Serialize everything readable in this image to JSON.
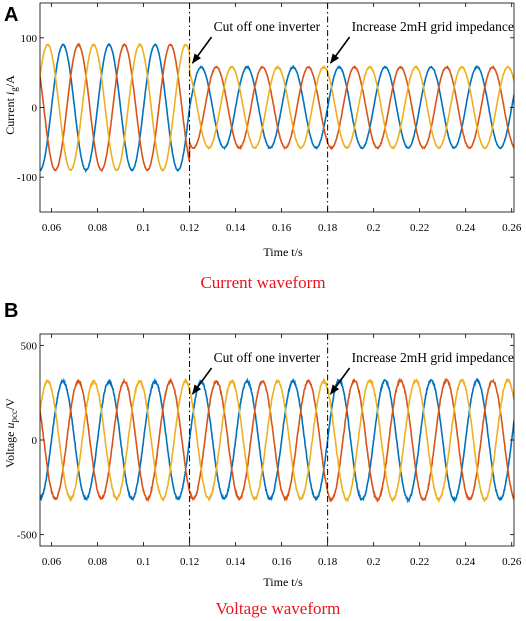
{
  "colors": {
    "phase_a": "#0072bd",
    "phase_b": "#d95319",
    "phase_c": "#edb120",
    "caption": "#e8141e",
    "frame": "#000000"
  },
  "chart_data": [
    {
      "type": "line",
      "panel_label": "A",
      "title": "Current waveform",
      "xlabel": "Time t/s",
      "ylabel_parts": {
        "prefix": "Current ",
        "var": "i",
        "sub": "g",
        "suffix": "/A"
      },
      "xlim": [
        0.055,
        0.261
      ],
      "ylim": [
        -150,
        150
      ],
      "xticks": [
        0.06,
        0.08,
        0.1,
        0.12,
        0.14,
        0.16,
        0.18,
        0.2,
        0.22,
        0.24,
        0.26
      ],
      "xtick_labels": [
        "0.06",
        "0.08",
        "0.1",
        "0.12",
        "0.14",
        "0.16",
        "0.18",
        "0.2",
        "0.22",
        "0.24",
        "0.26"
      ],
      "yticks": [
        -100,
        0,
        100
      ],
      "ytick_labels": [
        "-100",
        "0",
        "100"
      ],
      "frequency_hz": 50,
      "series": [
        {
          "phase_deg": 0,
          "color": "#0072bd"
        },
        {
          "phase_deg": -120,
          "color": "#d95319"
        },
        {
          "phase_deg": 120,
          "color": "#edb120"
        }
      ],
      "segments": [
        {
          "t_start": 0.055,
          "t_end": 0.12,
          "amplitude": 90
        },
        {
          "t_start": 0.12,
          "t_end": 0.18,
          "amplitude": 58
        },
        {
          "t_start": 0.18,
          "t_end": 0.261,
          "amplitude": 58
        }
      ],
      "noise": 1.5,
      "events": [
        {
          "t": 0.12,
          "label": "Cut off one inverter"
        },
        {
          "t": 0.18,
          "label": "Increase 2mH grid impedance"
        }
      ]
    },
    {
      "type": "line",
      "panel_label": "B",
      "title": "Voltage waveform",
      "xlabel": "Time t/s",
      "ylabel_parts": {
        "prefix": "Voltage ",
        "var": "u",
        "sub": "pcc",
        "suffix": "/V"
      },
      "xlim": [
        0.055,
        0.261
      ],
      "ylim": [
        -560,
        560
      ],
      "xticks": [
        0.06,
        0.08,
        0.1,
        0.12,
        0.14,
        0.16,
        0.18,
        0.2,
        0.22,
        0.24,
        0.26
      ],
      "xtick_labels": [
        "0.06",
        "0.08",
        "0.1",
        "0.12",
        "0.14",
        "0.16",
        "0.18",
        "0.2",
        "0.22",
        "0.24",
        "0.26"
      ],
      "yticks": [
        -500,
        0,
        500
      ],
      "ytick_labels": [
        "-500",
        "0",
        "500"
      ],
      "frequency_hz": 50,
      "series": [
        {
          "phase_deg": 0,
          "color": "#0072bd"
        },
        {
          "phase_deg": -120,
          "color": "#d95319"
        },
        {
          "phase_deg": 120,
          "color": "#edb120"
        }
      ],
      "segments": [
        {
          "t_start": 0.055,
          "t_end": 0.12,
          "amplitude": 310
        },
        {
          "t_start": 0.12,
          "t_end": 0.18,
          "amplitude": 310
        },
        {
          "t_start": 0.18,
          "t_end": 0.261,
          "amplitude": 315
        }
      ],
      "noise": 12,
      "events": [
        {
          "t": 0.12,
          "label": "Cut off one inverter"
        },
        {
          "t": 0.18,
          "label": "Increase 2mH grid impedance"
        }
      ]
    }
  ]
}
